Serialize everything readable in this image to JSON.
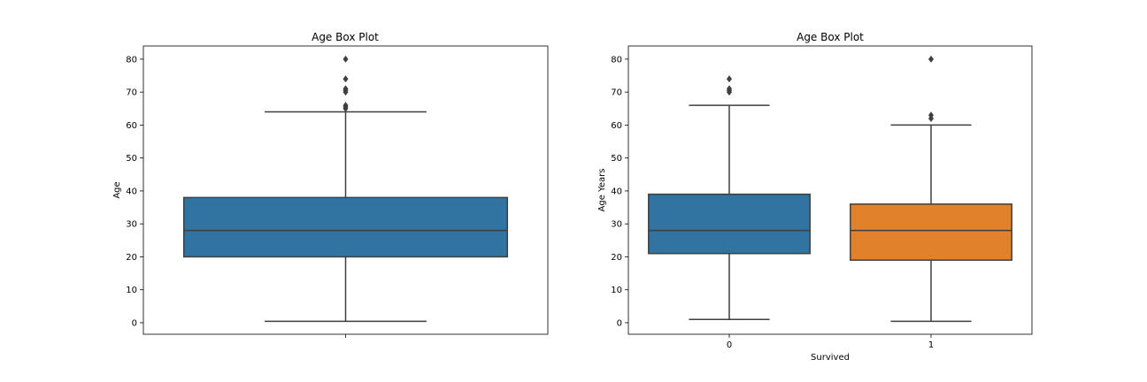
{
  "chart_data": [
    {
      "type": "box",
      "title": "Age Box Plot",
      "xlabel": "",
      "ylabel": "Age",
      "ylim": [
        -3.5,
        84
      ],
      "yticks": [
        0,
        10,
        20,
        30,
        40,
        50,
        60,
        70,
        80
      ],
      "categories": [
        ""
      ],
      "boxes": [
        {
          "category": "",
          "color": "#3274a1",
          "whisker_low": 0.42,
          "q1": 20,
          "median": 28,
          "q3": 38,
          "whisker_high": 64,
          "outliers": [
            65,
            65.5,
            66,
            70,
            70.5,
            71,
            74,
            80
          ]
        }
      ]
    },
    {
      "type": "box",
      "title": "Age Box Plot",
      "xlabel": "Survived",
      "ylabel": "Age Years",
      "ylim": [
        -3.5,
        84
      ],
      "yticks": [
        0,
        10,
        20,
        30,
        40,
        50,
        60,
        70,
        80
      ],
      "categories": [
        "0",
        "1"
      ],
      "boxes": [
        {
          "category": "0",
          "color": "#3274a1",
          "whisker_low": 1,
          "q1": 21,
          "median": 28,
          "q3": 39,
          "whisker_high": 66,
          "outliers": [
            70,
            70.5,
            71,
            74
          ]
        },
        {
          "category": "1",
          "color": "#e1812c",
          "whisker_low": 0.42,
          "q1": 19,
          "median": 28,
          "q3": 36,
          "whisker_high": 60,
          "outliers": [
            62,
            63,
            80
          ]
        }
      ]
    }
  ]
}
